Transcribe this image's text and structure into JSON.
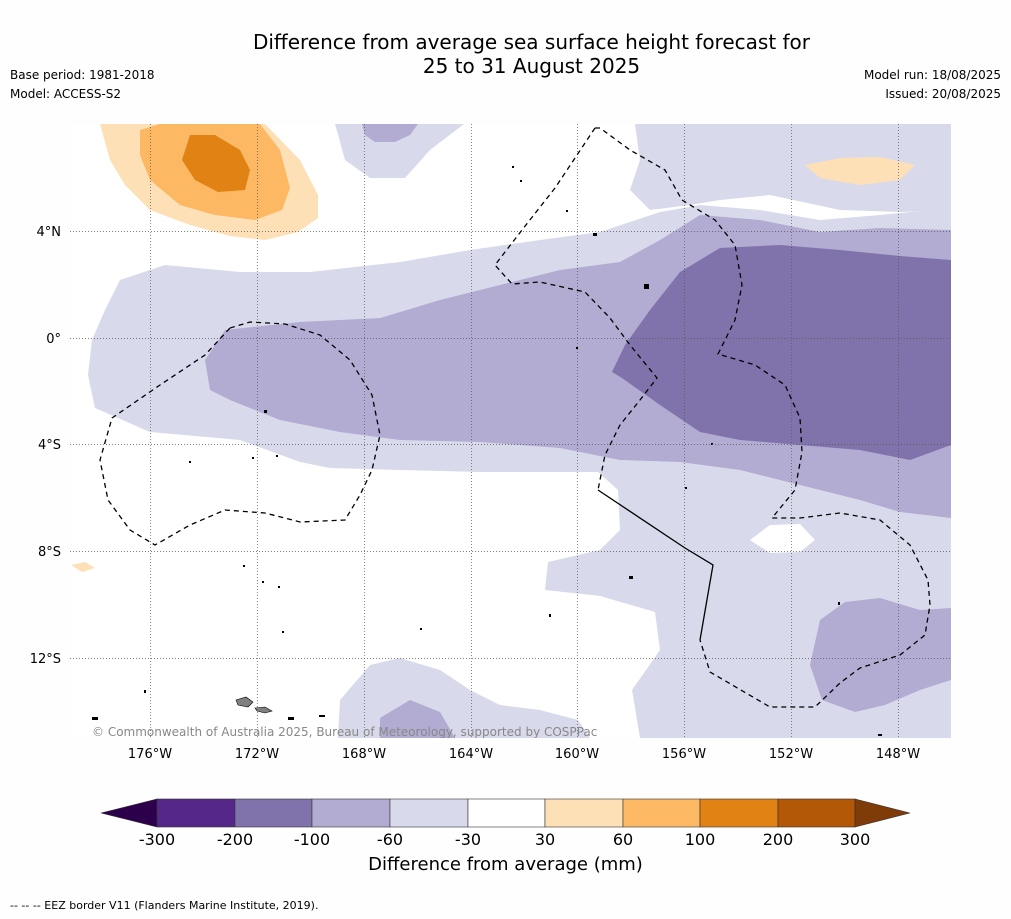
{
  "title": {
    "line1": "Difference from average sea surface height forecast for",
    "line2": "25 to 31 August 2025"
  },
  "meta_left": {
    "base_period": "Base period: 1981-2018",
    "model": "Model: ACCESS-S2"
  },
  "meta_right": {
    "model_run": "Model run: 18/08/2025",
    "issued": "Issued: 20/08/2025"
  },
  "map": {
    "lon_ticks": [
      "176°W",
      "172°W",
      "168°W",
      "164°W",
      "160°W",
      "156°W",
      "152°W",
      "148°W"
    ],
    "lat_ticks": [
      "4°N",
      "0°",
      "4°S",
      "8°S",
      "12°S"
    ],
    "copyright": "© Commonwealth of Australia 2025, Bureau of Meteorology, supported by COSPPac",
    "colors": {
      "neg_300_200": "#542788",
      "neg_200_100": "#8073ac",
      "neg_100_60": "#b2abd2",
      "neg_60_30": "#d8daeb",
      "neutral": "#ffffff",
      "pos_30_60": "#fee0b6",
      "pos_60_100": "#fdb863",
      "pos_100_200": "#e08214",
      "pos_200_300": "#b35806",
      "extend_low": "#2d004b",
      "extend_high": "#7f3b08",
      "land": "#808080"
    }
  },
  "colorbar": {
    "ticks": [
      "-300",
      "-200",
      "-100",
      "-60",
      "-30",
      "30",
      "60",
      "100",
      "200",
      "300"
    ],
    "title": "Difference from average (mm)"
  },
  "footnote": "--  --  -- EEZ border V11 (Flanders Marine Institute, 2019)."
}
